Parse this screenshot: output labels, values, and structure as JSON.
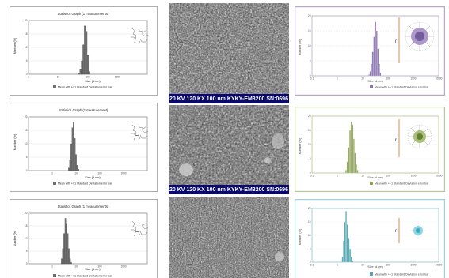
{
  "colors": {
    "left_bar": "#6f6f6f",
    "right_frame_1": "#b9a6cf",
    "right_frame_2": "#b9c89a",
    "right_frame_3": "#9fd0d8",
    "right_bar_1": "#8a73b0",
    "right_bar_2": "#8ea356",
    "right_bar_3": "#4ea6b4",
    "sem_bar": "#0a0a6e"
  },
  "panels": {
    "left": [
      {
        "title": "Statistics Graph (1 measurements)",
        "ylabel": "Number (%)",
        "xlabel": "Size (d.nm)",
        "legend": "Mean with +/-1 Standard Deviation error bar"
      },
      {
        "title": "Statistics Graph (1 measurement)",
        "ylabel": "Number (%)",
        "xlabel": "Size (d.nm)",
        "legend": "Mean with +/-1 Standard Deviation error bar"
      },
      {
        "title": "Statistics Graph (1 measurements)",
        "ylabel": "Number (%)",
        "xlabel": "Size (d.nm)",
        "legend": "Mean with +/-1 Standard Deviation error bar"
      }
    ],
    "right": [
      {
        "ylabel": "Number (%)",
        "xlabel": "Size (d.nm)",
        "legend": "Mean with +/-1 Standard Deviation error bar",
        "r_label": "r"
      },
      {
        "ylabel": "Number (%)",
        "xlabel": "Size (d.nm)",
        "legend": "Mean with +/-1 Standard Deviation error bar",
        "r_label": "r"
      },
      {
        "ylabel": "Number (%)",
        "xlabel": "Size (d.nm)",
        "legend": "Mean with +/-1 Standard Deviation error bar",
        "r_label": "r"
      }
    ],
    "sem": [
      {
        "kv": "20 KV",
        "mag": "120 KX",
        "scale": "100 nm",
        "instrument": "KYKY-EM3200",
        "sn": "SN:0696"
      },
      {
        "kv": "20 KV",
        "mag": "120 KX",
        "scale": "100 nm",
        "instrument": "KYKY-EM3200",
        "sn": "SN:0696"
      }
    ]
  },
  "chart_data": [
    {
      "type": "bar",
      "title": "Statistics Graph (1 measurements)",
      "xlabel": "Size (d.nm)",
      "ylabel": "Number (%)",
      "xscale": "log",
      "xlim": [
        1,
        10000
      ],
      "ylim": [
        0,
        20
      ],
      "yticks": [
        0,
        5,
        10,
        15,
        20
      ],
      "xticks": [
        "1",
        "10",
        "100",
        "1000"
      ],
      "x": [
        50,
        56,
        63,
        71,
        79,
        89,
        100,
        112
      ],
      "values": [
        0.5,
        2,
        5,
        11,
        18,
        16,
        7,
        1
      ]
    },
    {
      "type": "bar",
      "xlabel": "Size (d.nm)",
      "ylabel": "Number (%)",
      "xscale": "log",
      "xlim": [
        0.1,
        10000
      ],
      "ylim": [
        0,
        20
      ],
      "yticks": [
        0,
        5,
        10,
        15,
        20
      ],
      "xticks": [
        "0.1",
        "1",
        "10",
        "100",
        "1000",
        "10000"
      ],
      "x": [
        18,
        20,
        22,
        25,
        28,
        32,
        36,
        40,
        45,
        50
      ],
      "values": [
        0.5,
        1.5,
        4,
        8,
        13,
        18,
        15,
        9,
        4,
        1
      ]
    },
    {
      "type": "bar",
      "title": "Statistics Graph (1 measurement)",
      "xlabel": "Size (d.nm)",
      "ylabel": "Number (%)",
      "xscale": "log",
      "xlim": [
        0.1,
        10000
      ],
      "ylim": [
        0,
        20
      ],
      "yticks": [
        0,
        5,
        10,
        15,
        20
      ],
      "xticks": [
        "1",
        "10",
        "100",
        "1000"
      ],
      "x": [
        5,
        5.6,
        6.3,
        7.1,
        7.9,
        8.9,
        10,
        11.2,
        12.6
      ],
      "values": [
        1,
        4,
        10,
        16,
        18,
        12,
        6,
        2,
        0.5
      ]
    },
    {
      "type": "bar",
      "xlabel": "Size (d.nm)",
      "ylabel": "Number (%)",
      "xscale": "log",
      "xlim": [
        0.1,
        10000
      ],
      "ylim": [
        0,
        20
      ],
      "yticks": [
        0,
        5,
        10,
        15,
        20
      ],
      "xticks": [
        "0.1",
        "1",
        "10",
        "100",
        "1000",
        "10000"
      ],
      "x": [
        2.2,
        2.5,
        2.8,
        3.2,
        3.6,
        4,
        4.5,
        5,
        5.6,
        6.3
      ],
      "values": [
        1,
        4,
        9,
        15,
        18,
        17,
        12,
        7,
        3,
        1
      ]
    },
    {
      "type": "bar",
      "title": "Statistics Graph (1 measurements)",
      "xlabel": "Size (d.nm)",
      "ylabel": "Number (%)",
      "xscale": "log",
      "xlim": [
        0.1,
        10000
      ],
      "ylim": [
        0,
        20
      ],
      "yticks": [
        0,
        5,
        10,
        15,
        20
      ],
      "xticks": [
        "1",
        "10",
        "100",
        "1000"
      ],
      "x": [
        2.5,
        2.8,
        3.2,
        3.6,
        4,
        4.5,
        5,
        5.6,
        6.3
      ],
      "values": [
        2,
        6,
        12,
        18,
        16,
        12,
        6,
        2,
        0.5
      ]
    },
    {
      "type": "bar",
      "xlabel": "Size (d.nm)",
      "ylabel": "Number (%)",
      "xscale": "log",
      "xlim": [
        0.1,
        10000
      ],
      "ylim": [
        0,
        20
      ],
      "yticks": [
        0,
        5,
        10,
        15,
        20
      ],
      "xticks": [
        "0.1",
        "1",
        "10",
        "100",
        "1000",
        "10000"
      ],
      "x": [
        1.6,
        1.8,
        2,
        2.2,
        2.5,
        2.8,
        3.2,
        3.6,
        4
      ],
      "values": [
        2,
        8,
        15,
        19,
        14,
        9,
        5,
        2,
        0.5
      ]
    }
  ]
}
